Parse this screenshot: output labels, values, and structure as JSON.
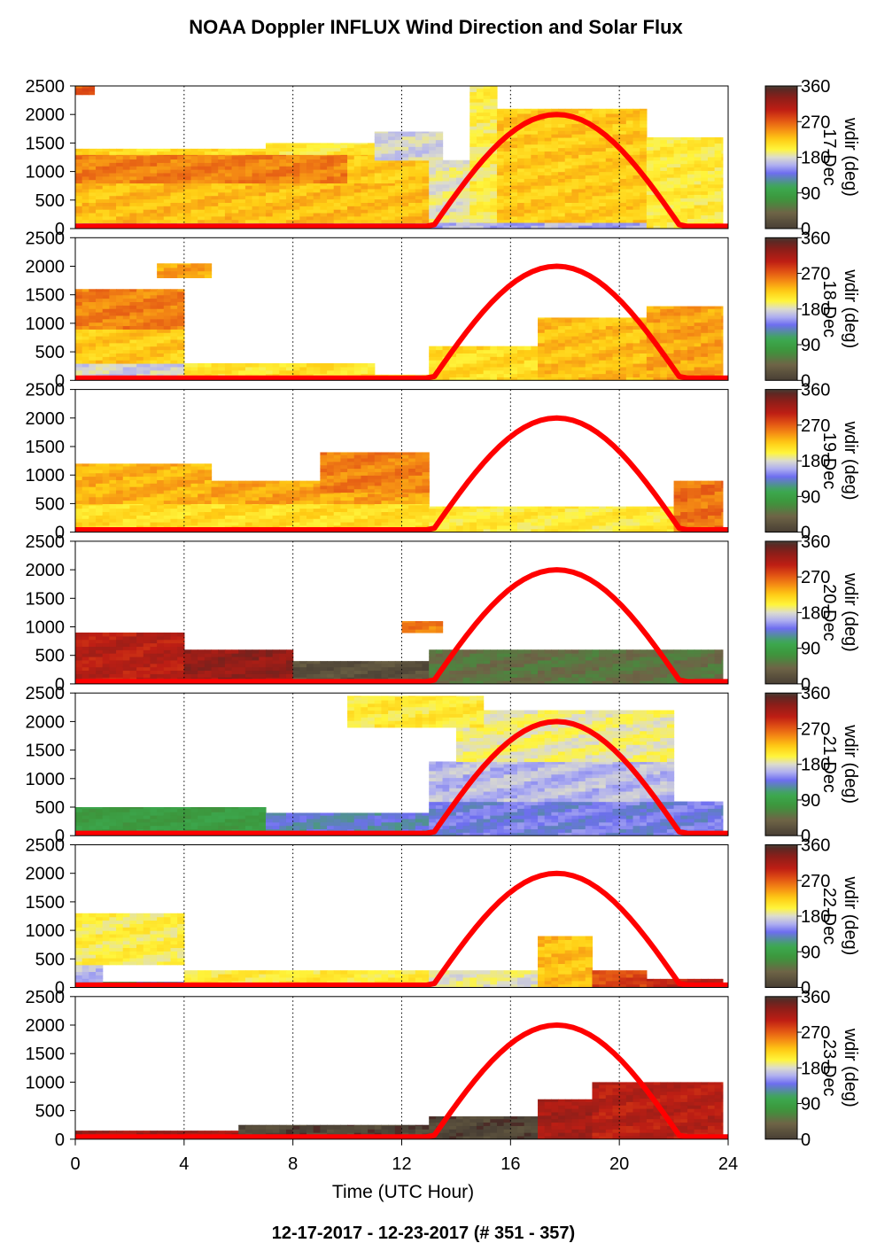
{
  "chart_data": {
    "type": "heatmap",
    "title": "NOAA Doppler INFLUX Wind Direction and Solar Flux",
    "footer": "12-17-2017 - 12-23-2017   (# 351 - 357)",
    "xlabel": "Time (UTC Hour)",
    "xlim": [
      0,
      24
    ],
    "xticks": [
      0,
      4,
      8,
      12,
      16,
      20,
      24
    ],
    "ylim": [
      0,
      2500
    ],
    "yticks": [
      0,
      500,
      1000,
      1500,
      2000,
      2500
    ],
    "colorbar": {
      "label": "wdir (deg)",
      "ticks": [
        0,
        90,
        180,
        270,
        360
      ],
      "tick_labels": [
        "0",
        "90",
        "180",
        "270",
        "360"
      ]
    },
    "solar_flux": {
      "color": "#ff0000",
      "sunrise_hour": 13.1,
      "sunset_hour": 22.3,
      "peak": 2000
    },
    "panels": [
      {
        "day": "351",
        "day_label": "17-Dec",
        "segments": [
          {
            "t0": 0,
            "t1": 13,
            "z0": 0,
            "z1": 100,
            "dir": 140
          },
          {
            "t0": 0,
            "t1": 13,
            "z0": 100,
            "z1": 800,
            "dir": 230
          },
          {
            "t0": 0,
            "t1": 10,
            "z0": 800,
            "z1": 1300,
            "dir": 255
          },
          {
            "t0": 10,
            "t1": 13,
            "z0": 800,
            "z1": 1300,
            "dir": 225
          },
          {
            "t0": 0,
            "t1": 7,
            "z0": 1300,
            "z1": 1400,
            "dir": 215
          },
          {
            "t0": 7,
            "t1": 11,
            "z0": 1300,
            "z1": 1500,
            "dir": 205
          },
          {
            "t0": 11,
            "t1": 13.5,
            "z0": 1200,
            "z1": 1700,
            "dir": 175
          },
          {
            "t0": 13,
            "t1": 14.5,
            "z0": 0,
            "z1": 1200,
            "dir": 185
          },
          {
            "t0": 14.5,
            "t1": 15.5,
            "z0": 0,
            "z1": 2500,
            "dir": 200
          },
          {
            "t0": 15.5,
            "t1": 21,
            "z0": 100,
            "z1": 2100,
            "dir": 225
          },
          {
            "t0": 13,
            "t1": 21,
            "z0": 0,
            "z1": 100,
            "dir": 160
          },
          {
            "t0": 21,
            "t1": 23.8,
            "z0": 0,
            "z1": 1600,
            "dir": 205
          },
          {
            "t0": 0,
            "t1": 0.7,
            "z0": 2350,
            "z1": 2500,
            "dir": 270
          }
        ]
      },
      {
        "day": "352",
        "day_label": "18-Dec",
        "segments": [
          {
            "t0": 0,
            "t1": 4,
            "z0": 0,
            "z1": 300,
            "dir": 175
          },
          {
            "t0": 0,
            "t1": 4,
            "z0": 300,
            "z1": 900,
            "dir": 225
          },
          {
            "t0": 0,
            "t1": 4,
            "z0": 900,
            "z1": 1600,
            "dir": 255
          },
          {
            "t0": 3,
            "t1": 5,
            "z0": 1800,
            "z1": 2050,
            "dir": 240
          },
          {
            "t0": 4,
            "t1": 11,
            "z0": 0,
            "z1": 300,
            "dir": 210
          },
          {
            "t0": 11,
            "t1": 13,
            "z0": 0,
            "z1": 100,
            "dir": 200
          },
          {
            "t0": 13,
            "t1": 17,
            "z0": 0,
            "z1": 600,
            "dir": 215
          },
          {
            "t0": 17,
            "t1": 21,
            "z0": 0,
            "z1": 1100,
            "dir": 230
          },
          {
            "t0": 21,
            "t1": 23.8,
            "z0": 0,
            "z1": 1300,
            "dir": 240
          }
        ]
      },
      {
        "day": "353",
        "day_label": "19-Dec",
        "segments": [
          {
            "t0": 0,
            "t1": 13,
            "z0": 0,
            "z1": 500,
            "dir": 215
          },
          {
            "t0": 0,
            "t1": 5,
            "z0": 500,
            "z1": 1200,
            "dir": 235
          },
          {
            "t0": 5,
            "t1": 13,
            "z0": 500,
            "z1": 900,
            "dir": 240
          },
          {
            "t0": 9,
            "t1": 13,
            "z0": 700,
            "z1": 1400,
            "dir": 255
          },
          {
            "t0": 13,
            "t1": 22,
            "z0": 0,
            "z1": 450,
            "dir": 205
          },
          {
            "t0": 22,
            "t1": 23.8,
            "z0": 0,
            "z1": 900,
            "dir": 260
          }
        ]
      },
      {
        "day": "354",
        "day_label": "20-Dec",
        "segments": [
          {
            "t0": 0,
            "t1": 4,
            "z0": 0,
            "z1": 900,
            "dir": 305
          },
          {
            "t0": 4,
            "t1": 8,
            "z0": 0,
            "z1": 600,
            "dir": 325
          },
          {
            "t0": 8,
            "t1": 13,
            "z0": 0,
            "z1": 400,
            "dir": 20
          },
          {
            "t0": 13,
            "t1": 23.8,
            "z0": 0,
            "z1": 600,
            "dir": 50
          },
          {
            "t0": 12,
            "t1": 13.5,
            "z0": 900,
            "z1": 1100,
            "dir": 255
          }
        ]
      },
      {
        "day": "355",
        "day_label": "21-Dec",
        "segments": [
          {
            "t0": 0,
            "t1": 7,
            "z0": 0,
            "z1": 500,
            "dir": 85
          },
          {
            "t0": 7,
            "t1": 13,
            "z0": 0,
            "z1": 400,
            "dir": 130
          },
          {
            "t0": 13,
            "t1": 23.8,
            "z0": 0,
            "z1": 600,
            "dir": 140
          },
          {
            "t0": 13,
            "t1": 22,
            "z0": 600,
            "z1": 1300,
            "dir": 165
          },
          {
            "t0": 14,
            "t1": 22,
            "z0": 1300,
            "z1": 2200,
            "dir": 190
          },
          {
            "t0": 10,
            "t1": 15,
            "z0": 1900,
            "z1": 2450,
            "dir": 205
          }
        ]
      },
      {
        "day": "356",
        "day_label": "22-Dec",
        "segments": [
          {
            "t0": 0,
            "t1": 4,
            "z0": 0,
            "z1": 100,
            "dir": 120
          },
          {
            "t0": 0,
            "t1": 1,
            "z0": 100,
            "z1": 600,
            "dir": 165
          },
          {
            "t0": 0,
            "t1": 4,
            "z0": 400,
            "z1": 1300,
            "dir": 200
          },
          {
            "t0": 4,
            "t1": 13,
            "z0": 0,
            "z1": 300,
            "dir": 205
          },
          {
            "t0": 13,
            "t1": 17,
            "z0": 0,
            "z1": 300,
            "dir": 185
          },
          {
            "t0": 17,
            "t1": 19,
            "z0": 0,
            "z1": 900,
            "dir": 230
          },
          {
            "t0": 19,
            "t1": 21,
            "z0": 0,
            "z1": 300,
            "dir": 280
          },
          {
            "t0": 21,
            "t1": 23.8,
            "z0": 0,
            "z1": 150,
            "dir": 300
          }
        ]
      },
      {
        "day": "357",
        "day_label": "23-Dec",
        "segments": [
          {
            "t0": 0,
            "t1": 6,
            "z0": 0,
            "z1": 150,
            "dir": 320
          },
          {
            "t0": 6,
            "t1": 13,
            "z0": 0,
            "z1": 250,
            "dir": 10
          },
          {
            "t0": 13,
            "t1": 17,
            "z0": 0,
            "z1": 400,
            "dir": 10
          },
          {
            "t0": 17,
            "t1": 19,
            "z0": 0,
            "z1": 700,
            "dir": 315
          },
          {
            "t0": 19,
            "t1": 23.8,
            "z0": 0,
            "z1": 1000,
            "dir": 305
          }
        ]
      }
    ]
  }
}
